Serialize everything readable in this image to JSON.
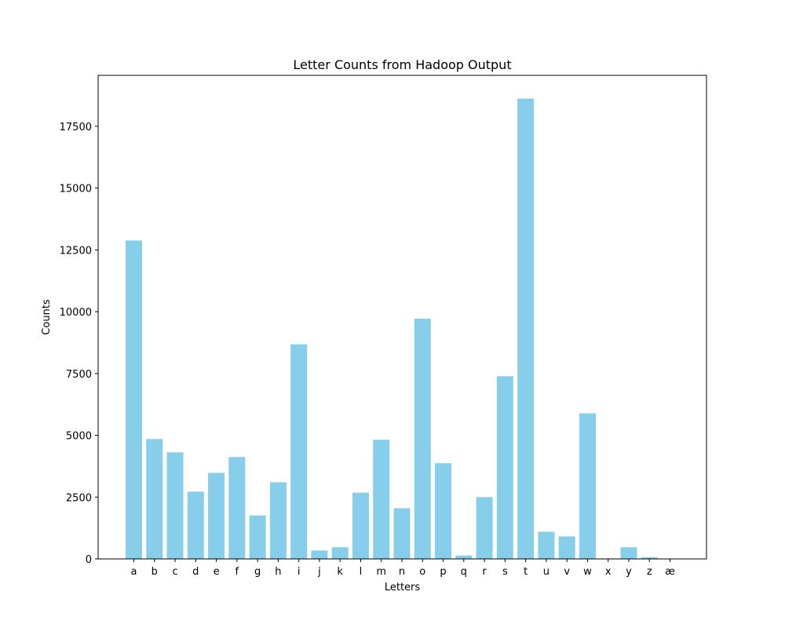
{
  "chart_data": {
    "type": "bar",
    "title": "Letter Counts from Hadoop Output",
    "xlabel": "Letters",
    "ylabel": "Counts",
    "categories": [
      "a",
      "b",
      "c",
      "d",
      "e",
      "f",
      "g",
      "h",
      "i",
      "j",
      "k",
      "l",
      "m",
      "n",
      "o",
      "p",
      "q",
      "r",
      "s",
      "t",
      "u",
      "v",
      "w",
      "x",
      "y",
      "z",
      "æ"
    ],
    "values": [
      12880,
      4850,
      4310,
      2720,
      3480,
      4120,
      1760,
      3100,
      8680,
      340,
      470,
      2680,
      4820,
      2050,
      9720,
      3870,
      140,
      2500,
      7390,
      18620,
      1100,
      910,
      5890,
      20,
      470,
      70,
      5
    ],
    "ylim": [
      0,
      19560
    ],
    "yticks": [
      0,
      2500,
      5000,
      7500,
      10000,
      12500,
      15000,
      17500
    ],
    "ytick_labels": [
      "0",
      "2500",
      "5000",
      "7500",
      "10000",
      "12500",
      "15000",
      "17500"
    ],
    "grid": false,
    "bar_color": "#87ceeb"
  }
}
